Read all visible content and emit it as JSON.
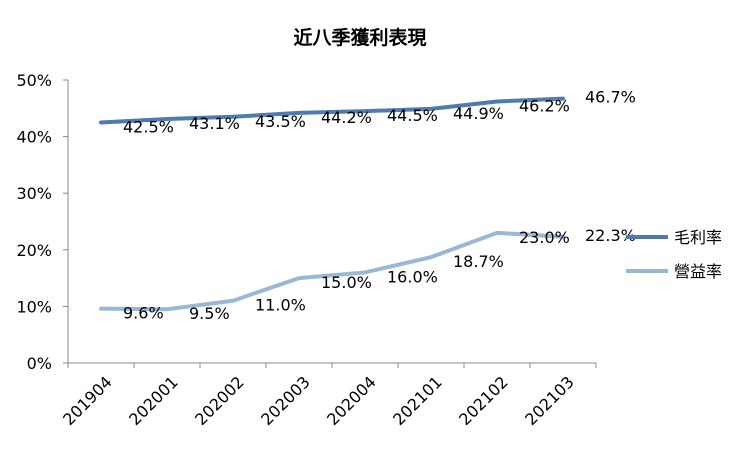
{
  "chart_data": {
    "type": "line",
    "title": "近八季獲利表現",
    "categories": [
      "201904",
      "202001",
      "202002",
      "202003",
      "202004",
      "202101",
      "202102",
      "202103"
    ],
    "y_ticks": [
      "0%",
      "10%",
      "20%",
      "30%",
      "40%",
      "50%"
    ],
    "ylim": [
      0,
      50
    ],
    "legend_position": "right",
    "series": [
      {
        "name": "毛利率",
        "color": "#4f7bb0",
        "values": [
          42.5,
          43.1,
          43.5,
          44.2,
          44.5,
          44.9,
          46.2,
          46.7
        ],
        "labels": [
          "42.5%",
          "43.1%",
          "43.5%",
          "44.2%",
          "44.5%",
          "44.9%",
          "46.2%",
          "46.7%"
        ]
      },
      {
        "name": "營益率",
        "color": "#9bb7d6",
        "values": [
          9.6,
          9.5,
          11.0,
          15.0,
          16.0,
          18.7,
          23.0,
          22.3
        ],
        "labels": [
          "9.6%",
          "9.5%",
          "11.0%",
          "15.0%",
          "16.0%",
          "18.7%",
          "23.0%",
          "22.3%"
        ]
      }
    ]
  }
}
